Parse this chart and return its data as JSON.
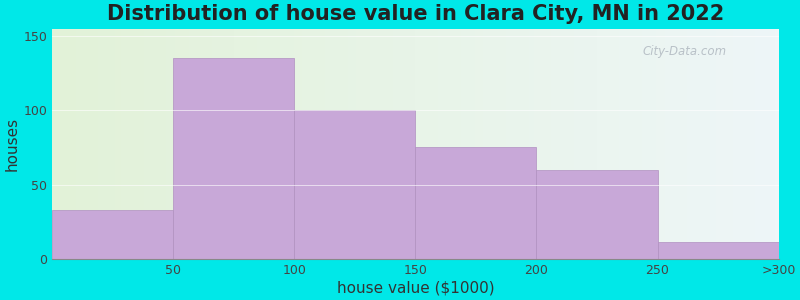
{
  "title": "Distribution of house value in Clara City, MN in 2022",
  "xlabel": "house value ($1000)",
  "ylabel": "houses",
  "tick_labels": [
    "50",
    "100",
    "150",
    "200",
    "250",
    ">300"
  ],
  "values": [
    33,
    135,
    100,
    75,
    60,
    11
  ],
  "bar_color": "#c8a8d8",
  "bar_edgecolor": "#b090c0",
  "ylim": [
    0,
    155
  ],
  "yticks": [
    0,
    50,
    100,
    150
  ],
  "outer_bg": "#00e8e8",
  "plot_bg_left": "#e2f2d8",
  "plot_bg_right": "#eef6f8",
  "title_fontsize": 15,
  "axis_label_fontsize": 11,
  "tick_fontsize": 9,
  "watermark_text": "City-Data.com",
  "watermark_color": "#b0b8c0"
}
